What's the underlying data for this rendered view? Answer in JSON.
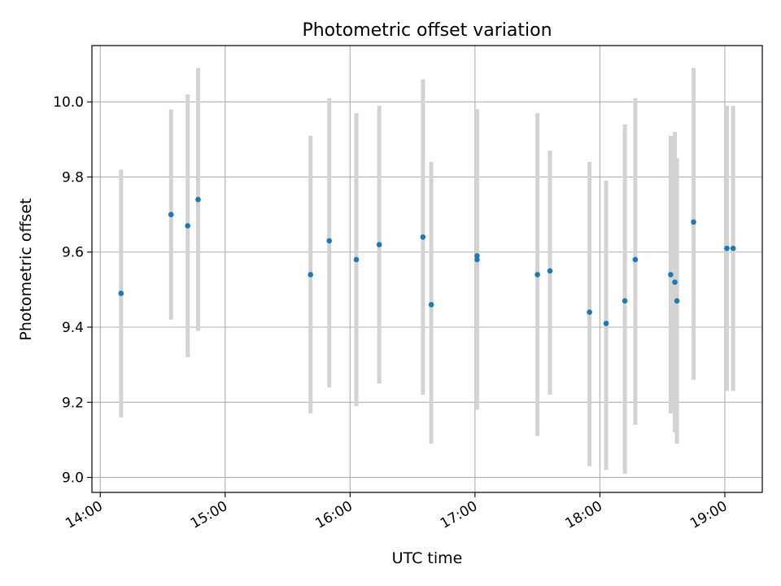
{
  "chart_data": {
    "type": "scatter",
    "title": "Photometric offset variation",
    "xlabel": "UTC time",
    "ylabel": "Photometric offset",
    "xlim": [
      "13:56",
      "19:18"
    ],
    "ylim": [
      8.96,
      10.15
    ],
    "x_ticks": [
      "14:00",
      "15:00",
      "16:00",
      "17:00",
      "18:00",
      "19:00"
    ],
    "y_ticks": [
      "9.0",
      "9.2",
      "9.4",
      "9.6",
      "9.8",
      "10.0"
    ],
    "grid": true,
    "colors": {
      "point": "#1f77b4",
      "errorbar": "#d3d3d3",
      "grid": "#b0b0b0"
    },
    "points": [
      {
        "x": "14:10",
        "y": 9.49,
        "ylo": 9.16,
        "yhi": 9.82
      },
      {
        "x": "14:34",
        "y": 9.7,
        "ylo": 9.42,
        "yhi": 9.98
      },
      {
        "x": "14:42",
        "y": 9.67,
        "ylo": 9.32,
        "yhi": 10.02
      },
      {
        "x": "14:47",
        "y": 9.74,
        "ylo": 9.39,
        "yhi": 10.09
      },
      {
        "x": "15:41",
        "y": 9.54,
        "ylo": 9.17,
        "yhi": 9.91
      },
      {
        "x": "15:50",
        "y": 9.63,
        "ylo": 9.24,
        "yhi": 10.01
      },
      {
        "x": "16:03",
        "y": 9.58,
        "ylo": 9.19,
        "yhi": 9.97
      },
      {
        "x": "16:14",
        "y": 9.62,
        "ylo": 9.25,
        "yhi": 9.99
      },
      {
        "x": "16:35",
        "y": 9.64,
        "ylo": 9.22,
        "yhi": 10.06
      },
      {
        "x": "16:39",
        "y": 9.46,
        "ylo": 9.09,
        "yhi": 9.84
      },
      {
        "x": "17:01",
        "y": 9.58,
        "ylo": 9.18,
        "yhi": 9.98
      },
      {
        "x": "17:01",
        "y": 9.59,
        "ylo": 9.2,
        "yhi": 9.98
      },
      {
        "x": "17:30",
        "y": 9.54,
        "ylo": 9.11,
        "yhi": 9.97
      },
      {
        "x": "17:36",
        "y": 9.55,
        "ylo": 9.22,
        "yhi": 9.87
      },
      {
        "x": "17:55",
        "y": 9.44,
        "ylo": 9.03,
        "yhi": 9.84
      },
      {
        "x": "18:03",
        "y": 9.41,
        "ylo": 9.02,
        "yhi": 9.79
      },
      {
        "x": "18:12",
        "y": 9.47,
        "ylo": 9.01,
        "yhi": 9.94
      },
      {
        "x": "18:17",
        "y": 9.58,
        "ylo": 9.14,
        "yhi": 10.01
      },
      {
        "x": "18:34",
        "y": 9.54,
        "ylo": 9.17,
        "yhi": 9.91
      },
      {
        "x": "18:36",
        "y": 9.52,
        "ylo": 9.12,
        "yhi": 9.92
      },
      {
        "x": "18:37",
        "y": 9.47,
        "ylo": 9.09,
        "yhi": 9.85
      },
      {
        "x": "18:45",
        "y": 9.68,
        "ylo": 9.26,
        "yhi": 10.09
      },
      {
        "x": "19:01",
        "y": 9.61,
        "ylo": 9.23,
        "yhi": 9.99
      },
      {
        "x": "19:04",
        "y": 9.61,
        "ylo": 9.23,
        "yhi": 9.99
      }
    ]
  }
}
